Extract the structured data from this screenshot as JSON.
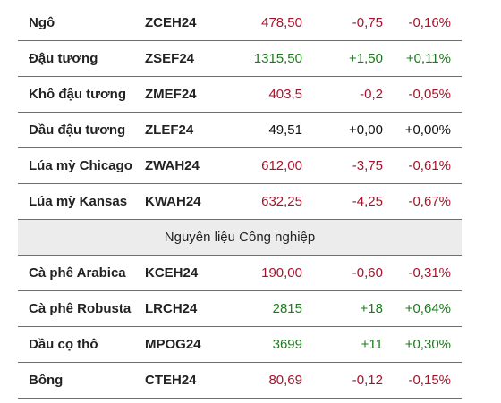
{
  "colors": {
    "up": "#1d7a1d",
    "down": "#a4152b",
    "flat": "#111111"
  },
  "rows_top": [
    {
      "name": "Ngô",
      "code": "ZCEH24",
      "price": "478,50",
      "change": "-0,75",
      "pct": "-0,16%",
      "trend": "down"
    },
    {
      "name": "Đậu tương",
      "code": "ZSEF24",
      "price": "1315,50",
      "change": "+1,50",
      "pct": "+0,11%",
      "trend": "up"
    },
    {
      "name": "Khô đậu tương",
      "code": "ZMEF24",
      "price": "403,5",
      "change": "-0,2",
      "pct": "-0,05%",
      "trend": "down"
    },
    {
      "name": "Dầu đậu tương",
      "code": "ZLEF24",
      "price": "49,51",
      "change": "+0,00",
      "pct": "+0,00%",
      "trend": "flat"
    },
    {
      "name": "Lúa mỳ Chicago",
      "code": "ZWAH24",
      "price": "612,00",
      "change": "-3,75",
      "pct": "-0,61%",
      "trend": "down"
    },
    {
      "name": "Lúa mỳ Kansas",
      "code": "KWAH24",
      "price": "632,25",
      "change": "-4,25",
      "pct": "-0,67%",
      "trend": "down"
    }
  ],
  "section": {
    "title": "Nguyên liệu Công nghiệp"
  },
  "rows_bottom": [
    {
      "name": "Cà phê Arabica",
      "code": "KCEH24",
      "price": "190,00",
      "change": "-0,60",
      "pct": "-0,31%",
      "trend": "down"
    },
    {
      "name": "Cà phê Robusta",
      "code": "LRCH24",
      "price": "2815",
      "change": "+18",
      "pct": "+0,64%",
      "trend": "up"
    },
    {
      "name": "Dầu cọ thô",
      "code": "MPOG24",
      "price": "3699",
      "change": "+11",
      "pct": "+0,30%",
      "trend": "up"
    },
    {
      "name": "Bông",
      "code": "CTEH24",
      "price": "80,69",
      "change": "-0,12",
      "pct": "-0,15%",
      "trend": "down"
    }
  ]
}
